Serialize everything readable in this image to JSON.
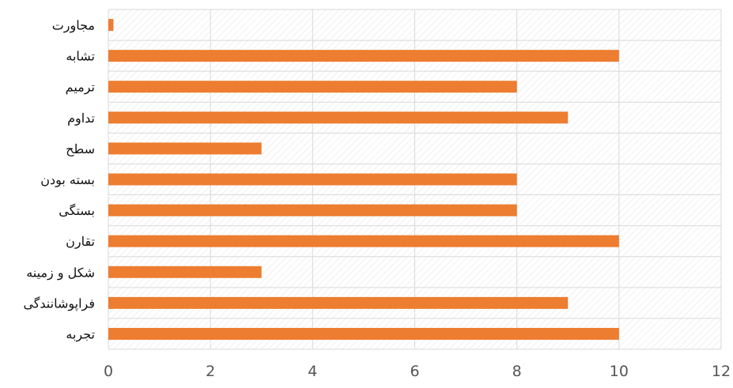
{
  "chart_data": {
    "type": "bar",
    "orientation": "horizontal",
    "title": "",
    "xlabel": "",
    "ylabel": "",
    "categories": [
      "مجاورت",
      "تشابه",
      "ترمیم",
      "تداوم",
      "سطح",
      "بسته بودن",
      "بستگی",
      "تقارن",
      "شکل و زمینه",
      "فراپوشانندگی",
      "تجربه"
    ],
    "values": [
      0.1,
      10,
      8,
      9,
      3,
      8,
      8,
      10,
      3,
      9,
      10
    ],
    "xlim": [
      0,
      12
    ],
    "x_ticks": [
      "0",
      "2",
      "4",
      "6",
      "8",
      "10",
      "12"
    ],
    "grid": true,
    "legend": "none",
    "colors": {
      "bar": "#ED7D31",
      "grid": "#D9D9D9",
      "hatch": "#E3E3E3",
      "text": "#111111",
      "tick": "#555555"
    }
  }
}
